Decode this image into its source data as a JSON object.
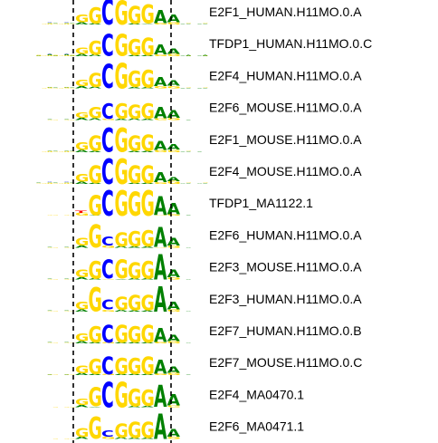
{
  "colors": {
    "A": "#008000",
    "C": "#0000ff",
    "G": "#ffd700",
    "T": "#ff0000",
    "guide": "#000000"
  },
  "motifs": [
    {
      "name": "E2F1_HUMAN.H11MO.0.A",
      "seq": "GGCGGGAA",
      "profile": [
        0.3,
        0.65,
        1.0,
        0.95,
        0.7,
        0.75,
        0.5,
        0.3
      ],
      "spread": 0.55
    },
    {
      "name": "TFDP1_HUMAN.H11MO.0.C",
      "seq": "GGCGGGAA",
      "profile": [
        0.25,
        0.55,
        0.85,
        0.85,
        0.65,
        0.7,
        0.4,
        0.2
      ],
      "spread": 0.65
    },
    {
      "name": "E2F4_HUMAN.H11MO.0.A",
      "seq": "GGCGGGAA",
      "profile": [
        0.25,
        0.55,
        0.95,
        1.0,
        0.65,
        0.7,
        0.35,
        0.2
      ],
      "spread": 0.5
    },
    {
      "name": "E2F6_MOUSE.H11MO.0.A",
      "seq": "GGCGGGAA",
      "profile": [
        0.2,
        0.45,
        0.6,
        0.6,
        0.55,
        0.6,
        0.45,
        0.3
      ],
      "spread": 0.3
    },
    {
      "name": "E2F1_MOUSE.H11MO.0.A",
      "seq": "GGCGGGAA",
      "profile": [
        0.3,
        0.6,
        0.95,
        0.95,
        0.6,
        0.65,
        0.35,
        0.2
      ],
      "spread": 0.45
    },
    {
      "name": "E2F4_MOUSE.H11MO.0.A",
      "seq": "GGCGGGAA",
      "profile": [
        0.3,
        0.7,
        1.0,
        1.0,
        0.7,
        0.7,
        0.4,
        0.15
      ],
      "spread": 0.6
    },
    {
      "name": "TFDP1_MA1122.1",
      "seq": "TGCGGGAA",
      "profile": [
        0.1,
        0.8,
        1.0,
        1.0,
        0.95,
        1.0,
        0.75,
        0.45
      ],
      "spread": 0.25
    },
    {
      "name": "E2F6_HUMAN.H11MO.0.A",
      "seq": "GGCGGGAA",
      "profile": [
        0.3,
        0.9,
        0.35,
        0.55,
        0.6,
        0.65,
        0.8,
        0.3
      ],
      "spread": 0.35
    },
    {
      "name": "E2F3_MOUSE.H11MO.0.A",
      "seq": "GGCGGGAA",
      "profile": [
        0.3,
        0.7,
        0.75,
        0.75,
        0.65,
        0.7,
        1.0,
        0.3
      ],
      "spread": 0.35
    },
    {
      "name": "E2F3_HUMAN.H11MO.0.A",
      "seq": "GGCGGGAA",
      "profile": [
        0.3,
        0.95,
        0.4,
        0.5,
        0.6,
        0.6,
        1.0,
        0.3
      ],
      "spread": 0.35
    },
    {
      "name": "E2F7_HUMAN.H11MO.0.B",
      "seq": "GGCGGGAA",
      "profile": [
        0.3,
        0.65,
        0.7,
        0.7,
        0.65,
        0.7,
        0.55,
        0.25
      ],
      "spread": 0.35
    },
    {
      "name": "E2F7_MOUSE.H11MO.0.C",
      "seq": "GGCGGGAA",
      "profile": [
        0.3,
        0.6,
        0.7,
        0.65,
        0.65,
        0.7,
        0.55,
        0.25
      ],
      "spread": 0.3
    },
    {
      "name": "E2F4_MA0470.1",
      "seq": "GGCGGGAA",
      "profile": [
        0.25,
        0.75,
        1.0,
        1.0,
        0.7,
        0.65,
        0.85,
        0.45
      ],
      "spread": 0.2
    },
    {
      "name": "E2F6_MA0471.1",
      "seq": "GGCGGGAA",
      "profile": [
        0.35,
        0.85,
        0.25,
        0.55,
        0.65,
        0.65,
        1.0,
        0.3
      ],
      "spread": 0.2
    }
  ]
}
